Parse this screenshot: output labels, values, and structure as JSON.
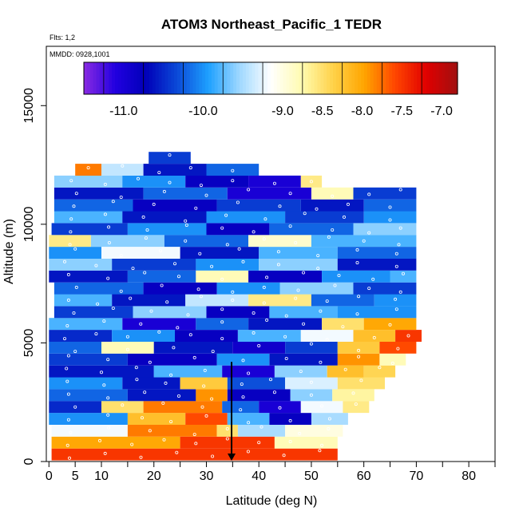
{
  "chart_data": {
    "type": "heatmap",
    "title": "ATOM3 Northeast_Pacific_1 TEDR",
    "annotations": [
      "Flts: 1,2",
      "MMDD: 0928,1001"
    ],
    "xlabel": "Latitude (deg N)",
    "ylabel": "Altitude (m)",
    "xlim": [
      -0.5,
      85
    ],
    "ylim": [
      0,
      17500
    ],
    "x_ticks": [
      0,
      5,
      10,
      20,
      30,
      40,
      50,
      60,
      70,
      80
    ],
    "y_ticks": [
      0,
      5000,
      10000,
      15000
    ],
    "grid": false,
    "colorbar": {
      "placement": "top, inside plot",
      "range": [
        -11.5,
        -6.8
      ],
      "tick_values": [
        -11.0,
        -10.0,
        -9.0,
        -8.5,
        -8.0,
        -7.5,
        -7.0
      ],
      "tick_labels": [
        "-11.0",
        "-10.0",
        "-9.0",
        "-8.5",
        "-8.0",
        "-7.5",
        "-7.0"
      ],
      "colors": [
        "#8a2be2",
        "#2200e0",
        "#0000b8",
        "#0b4ad8",
        "#1ea0ff",
        "#9fd8ff",
        "#ffffff",
        "#fffbb0",
        "#ffd24a",
        "#ffa500",
        "#ff4500",
        "#e00000",
        "#a01010"
      ]
    },
    "marker": {
      "label": "arrow",
      "x": 34.8,
      "y_from": 4200,
      "y_to": 0
    },
    "series": [
      {
        "alt": 300,
        "segments": [
          [
            0.5,
            55,
            -7.5
          ]
        ]
      },
      {
        "alt": 800,
        "segments": [
          [
            0.5,
            25,
            -8.0
          ],
          [
            25,
            43,
            -7.5
          ],
          [
            43,
            55,
            -8.8
          ]
        ]
      },
      {
        "alt": 1300,
        "segments": [
          [
            0.5,
            15,
            -9.2
          ],
          [
            15,
            32,
            -7.8
          ],
          [
            32,
            36,
            -8.5
          ],
          [
            36,
            45,
            -9.5
          ],
          [
            45,
            56,
            -9.0
          ]
        ]
      },
      {
        "alt": 1800,
        "segments": [
          [
            0,
            15,
            -10.0
          ],
          [
            15,
            26,
            -8.2
          ],
          [
            26,
            34,
            -7.6
          ],
          [
            34,
            42,
            -9.8
          ],
          [
            42,
            50,
            -10.8
          ],
          [
            50,
            57,
            -9.5
          ]
        ]
      },
      {
        "alt": 2300,
        "segments": [
          [
            0,
            10,
            -10.5
          ],
          [
            10,
            18,
            -8.5
          ],
          [
            18,
            33,
            -7.8
          ],
          [
            33,
            40,
            -10.2
          ],
          [
            40,
            48,
            -11.0
          ],
          [
            48,
            56,
            -9.2
          ],
          [
            56,
            61,
            -8.6
          ]
        ]
      },
      {
        "alt": 2800,
        "segments": [
          [
            0,
            15,
            -10.2
          ],
          [
            15,
            28,
            -10.6
          ],
          [
            28,
            34,
            -7.9
          ],
          [
            34,
            46,
            -10.8
          ],
          [
            46,
            54,
            -9.6
          ],
          [
            54,
            62,
            -8.7
          ]
        ]
      },
      {
        "alt": 3300,
        "segments": [
          [
            0,
            14,
            -10.0
          ],
          [
            14,
            25,
            -10.6
          ],
          [
            25,
            34,
            -8.3
          ],
          [
            34,
            45,
            -10.3
          ],
          [
            45,
            55,
            -9.3
          ],
          [
            55,
            64,
            -8.5
          ]
        ]
      },
      {
        "alt": 3800,
        "segments": [
          [
            0,
            20,
            -10.6
          ],
          [
            20,
            33,
            -9.8
          ],
          [
            33,
            43,
            -11.0
          ],
          [
            43,
            53,
            -9.6
          ],
          [
            53,
            60,
            -8.2
          ],
          [
            60,
            66,
            -8.4
          ]
        ]
      },
      {
        "alt": 4300,
        "segments": [
          [
            0,
            15,
            -10.4
          ],
          [
            15,
            32,
            -10.8
          ],
          [
            32,
            42,
            -10.0
          ],
          [
            42,
            55,
            -10.6
          ],
          [
            55,
            63,
            -7.9
          ],
          [
            63,
            68,
            -8.8
          ]
        ]
      },
      {
        "alt": 4800,
        "segments": [
          [
            0,
            10,
            -10.2
          ],
          [
            10,
            20,
            -8.8
          ],
          [
            20,
            35,
            -10.6
          ],
          [
            35,
            45,
            -10.9
          ],
          [
            45,
            55,
            -10.4
          ],
          [
            55,
            63,
            -8.3
          ],
          [
            63,
            70,
            -7.6
          ]
        ]
      },
      {
        "alt": 5300,
        "segments": [
          [
            0,
            12,
            -10.5
          ],
          [
            12,
            24,
            -10.0
          ],
          [
            24,
            36,
            -10.8
          ],
          [
            36,
            48,
            -9.8
          ],
          [
            48,
            58,
            -9.2
          ],
          [
            58,
            66,
            -8.2
          ],
          [
            66,
            71,
            -7.5
          ]
        ]
      },
      {
        "alt": 5800,
        "segments": [
          [
            0,
            14,
            -9.8
          ],
          [
            14,
            28,
            -11.0
          ],
          [
            28,
            38,
            -10.2
          ],
          [
            38,
            52,
            -10.6
          ],
          [
            52,
            60,
            -8.5
          ],
          [
            60,
            70,
            -8.0
          ]
        ]
      },
      {
        "alt": 6300,
        "segments": [
          [
            1,
            16,
            -10.4
          ],
          [
            16,
            30,
            -9.6
          ],
          [
            30,
            42,
            -10.8
          ],
          [
            42,
            55,
            -9.8
          ],
          [
            55,
            70,
            -10.0
          ]
        ]
      },
      {
        "alt": 6800,
        "segments": [
          [
            1,
            12,
            -9.8
          ],
          [
            12,
            26,
            -10.6
          ],
          [
            26,
            38,
            -9.4
          ],
          [
            38,
            50,
            -8.6
          ],
          [
            50,
            62,
            -10.2
          ],
          [
            62,
            70,
            -10.0
          ]
        ]
      },
      {
        "alt": 7300,
        "segments": [
          [
            1,
            18,
            -10.2
          ],
          [
            18,
            32,
            -10.8
          ],
          [
            32,
            44,
            -10.0
          ],
          [
            44,
            58,
            -9.6
          ],
          [
            58,
            70,
            -10.4
          ]
        ]
      },
      {
        "alt": 7800,
        "segments": [
          [
            0,
            15,
            -10.6
          ],
          [
            15,
            28,
            -10.2
          ],
          [
            28,
            38,
            -8.8
          ],
          [
            38,
            52,
            -10.8
          ],
          [
            52,
            65,
            -10.0
          ],
          [
            65,
            70,
            -9.8
          ]
        ]
      },
      {
        "alt": 8300,
        "segments": [
          [
            0,
            12,
            -9.6
          ],
          [
            12,
            28,
            -10.4
          ],
          [
            28,
            40,
            -10.0
          ],
          [
            40,
            55,
            -9.6
          ],
          [
            55,
            70,
            -10.6
          ]
        ]
      },
      {
        "alt": 8800,
        "segments": [
          [
            0,
            10,
            -10.0
          ],
          [
            10,
            25,
            -9.2
          ],
          [
            25,
            40,
            -10.6
          ],
          [
            40,
            55,
            -9.8
          ],
          [
            55,
            70,
            -10.2
          ]
        ]
      },
      {
        "alt": 9300,
        "segments": [
          [
            0,
            8,
            -8.6
          ],
          [
            8,
            22,
            -9.6
          ],
          [
            22,
            38,
            -10.2
          ],
          [
            38,
            50,
            -8.9
          ],
          [
            50,
            70,
            -9.8
          ]
        ]
      },
      {
        "alt": 9800,
        "segments": [
          [
            0.5,
            15,
            -10.4
          ],
          [
            15,
            30,
            -10.0
          ],
          [
            30,
            42,
            -10.8
          ],
          [
            42,
            58,
            -10.2
          ],
          [
            58,
            70,
            -9.6
          ]
        ]
      },
      {
        "alt": 10300,
        "segments": [
          [
            1,
            14,
            -9.8
          ],
          [
            14,
            30,
            -10.6
          ],
          [
            30,
            45,
            -10.0
          ],
          [
            45,
            60,
            -10.4
          ],
          [
            60,
            70,
            -10.0
          ]
        ]
      },
      {
        "alt": 10800,
        "segments": [
          [
            1,
            16,
            -10.2
          ],
          [
            16,
            32,
            -10.8
          ],
          [
            32,
            48,
            -10.4
          ],
          [
            48,
            60,
            -10.6
          ],
          [
            60,
            70,
            -10.2
          ]
        ]
      },
      {
        "alt": 11300,
        "segments": [
          [
            1,
            18,
            -10.6
          ],
          [
            18,
            34,
            -10.2
          ],
          [
            34,
            50,
            -11.0
          ],
          [
            50,
            58,
            -8.8
          ],
          [
            58,
            70,
            -10.4
          ]
        ]
      },
      {
        "alt": 11800,
        "segments": [
          [
            1,
            14,
            -9.6
          ],
          [
            14,
            26,
            -10.0
          ],
          [
            26,
            38,
            -10.8
          ],
          [
            38,
            48,
            -11.0
          ],
          [
            48,
            52,
            -8.6
          ]
        ]
      },
      {
        "alt": 12300,
        "segments": [
          [
            5,
            10,
            -7.8
          ],
          [
            10,
            18,
            -9.4
          ],
          [
            18,
            30,
            -10.6
          ],
          [
            30,
            40,
            -10.2
          ]
        ]
      },
      {
        "alt": 12800,
        "segments": [
          [
            19,
            27,
            -10.4
          ]
        ]
      }
    ]
  }
}
